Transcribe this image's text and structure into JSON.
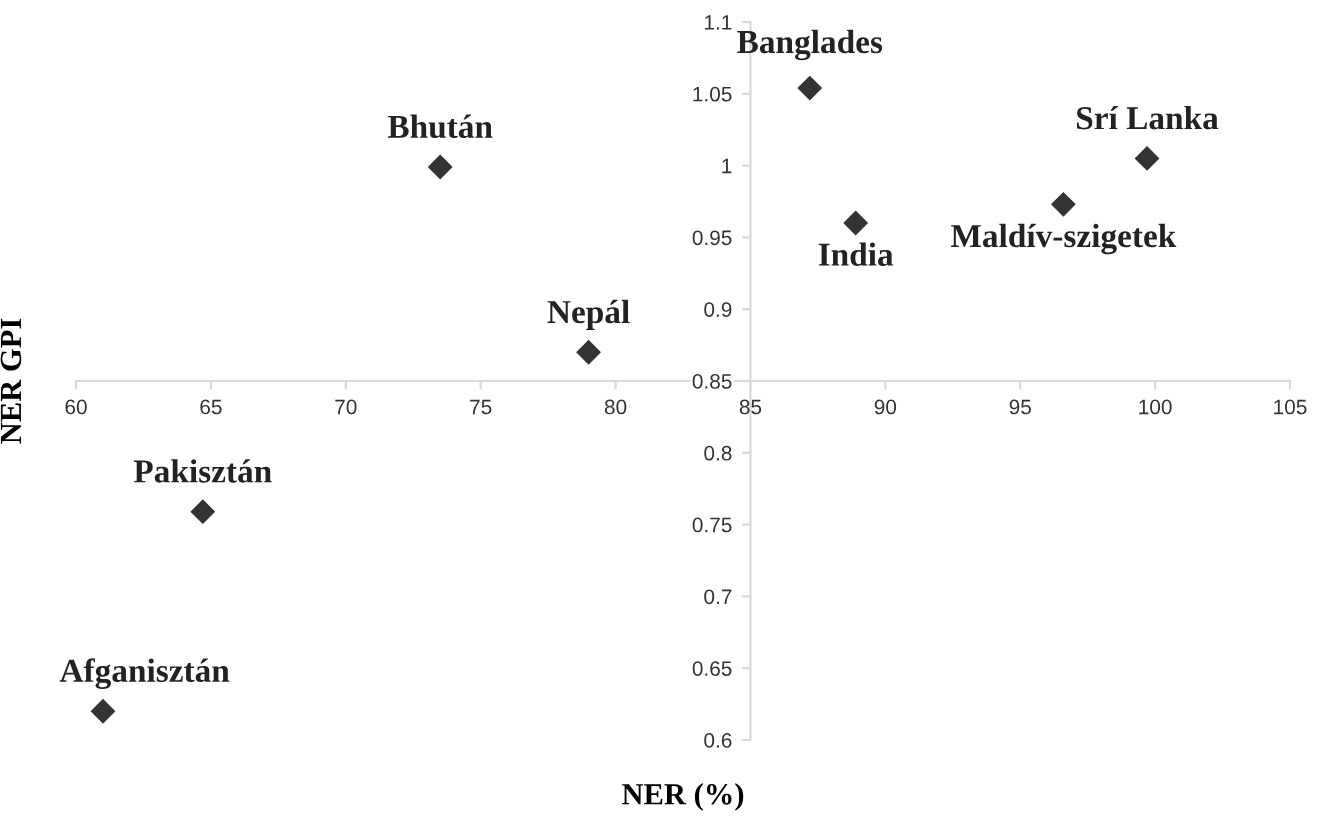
{
  "chart_data": {
    "type": "scatter",
    "xlabel": "NER (%)",
    "ylabel": "NER GPI",
    "x": [
      87.2,
      73.5,
      79.0,
      88.9,
      96.6,
      99.7,
      64.7,
      61.0
    ],
    "series": [
      {
        "color": "#333333",
        "values": [
          1.054,
          0.999,
          0.87,
          0.96,
          0.973,
          1.005,
          0.759,
          0.62
        ]
      }
    ],
    "annotations": [
      {
        "text": "Banglades",
        "x": 87.2,
        "y": 1.054
      },
      {
        "text": "Bhután",
        "x": 73.5,
        "y": 0.999
      },
      {
        "text": "Nepál",
        "x": 79.0,
        "y": 0.87
      },
      {
        "text": "India",
        "x": 88.9,
        "y": 0.96
      },
      {
        "text": "Maldív-szigetek",
        "x": 96.6,
        "y": 0.973
      },
      {
        "text": "Srí Lanka",
        "x": 99.7,
        "y": 1.005
      },
      {
        "text": "Pakisztán",
        "x": 64.7,
        "y": 0.759
      },
      {
        "text": "Afganisztán",
        "x": 61.0,
        "y": 0.62
      }
    ],
    "xlim": [
      60,
      105
    ],
    "xticks": [
      60,
      65,
      70,
      75,
      80,
      85,
      90,
      95,
      100,
      105
    ],
    "ylim": [
      0.6,
      1.1
    ],
    "yticks": [
      0.6,
      0.65,
      0.7,
      0.75,
      0.8,
      0.85,
      0.9,
      0.95,
      1,
      1.05,
      1.1
    ],
    "marker": "diamond",
    "grid": false,
    "legend": false
  }
}
